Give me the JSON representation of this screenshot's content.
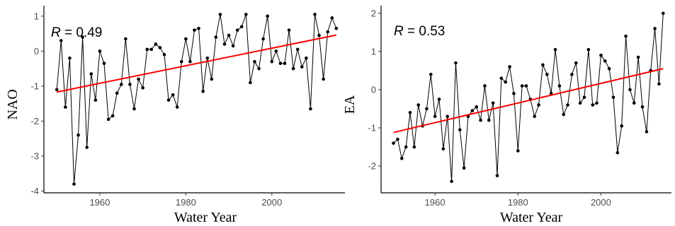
{
  "chart_data": [
    {
      "type": "line",
      "xlabel": "Water Year",
      "ylabel": "NAO",
      "annotation": {
        "symbol": "R",
        "text": " = 0.49"
      },
      "xlim": [
        1947,
        2017
      ],
      "ylim": [
        -4.05,
        1.3
      ],
      "xticks": [
        1960,
        1980,
        2000
      ],
      "yticks": [
        -4,
        -3,
        -2,
        -1,
        0,
        1
      ],
      "grid": false,
      "line_color": "#000000",
      "trend_color": "#ff0000",
      "trend": {
        "x": [
          1950,
          2015
        ],
        "y": [
          -1.17,
          0.46
        ]
      },
      "series": [
        {
          "x": [
            1950,
            1951,
            1952,
            1953,
            1954,
            1955,
            1956,
            1957,
            1958,
            1959,
            1960,
            1961,
            1962,
            1963,
            1964,
            1965,
            1966,
            1967,
            1968,
            1969,
            1970,
            1971,
            1972,
            1973,
            1974,
            1975,
            1976,
            1977,
            1978,
            1979,
            1980,
            1981,
            1982,
            1983,
            1984,
            1985,
            1986,
            1987,
            1988,
            1989,
            1990,
            1991,
            1992,
            1993,
            1994,
            1995,
            1996,
            1997,
            1998,
            1999,
            2000,
            2001,
            2002,
            2003,
            2004,
            2005,
            2006,
            2007,
            2008,
            2009,
            2010,
            2011,
            2012,
            2013,
            2014,
            2015
          ],
          "y": [
            -1.1,
            0.3,
            -1.6,
            -0.2,
            -3.8,
            -2.4,
            0.4,
            -2.75,
            -0.65,
            -1.4,
            0.0,
            -0.35,
            -1.95,
            -1.85,
            -1.2,
            -0.95,
            0.35,
            -0.95,
            -1.65,
            -0.8,
            -1.05,
            0.05,
            0.05,
            0.2,
            0.1,
            -0.1,
            -1.4,
            -1.25,
            -1.6,
            -0.3,
            0.35,
            -0.3,
            0.6,
            0.65,
            -1.15,
            -0.2,
            -0.8,
            0.4,
            1.05,
            0.2,
            0.45,
            0.15,
            0.6,
            0.7,
            1.05,
            -0.9,
            -0.3,
            -0.5,
            0.35,
            1.0,
            -0.3,
            0.0,
            -0.35,
            -0.35,
            0.6,
            -0.5,
            0.05,
            -0.45,
            -0.2,
            -1.65,
            1.05,
            0.45,
            -0.8,
            0.55,
            0.95,
            0.65
          ]
        }
      ]
    },
    {
      "type": "line",
      "xlabel": "Water Year",
      "ylabel": "EA",
      "annotation": {
        "symbol": "R",
        "text": " = 0.53"
      },
      "xlim": [
        1947,
        2017
      ],
      "ylim": [
        -2.7,
        2.2
      ],
      "xticks": [
        1960,
        1980,
        2000
      ],
      "yticks": [
        -2,
        -1,
        0,
        1,
        2
      ],
      "grid": false,
      "line_color": "#000000",
      "trend_color": "#ff0000",
      "trend": {
        "x": [
          1950,
          2015
        ],
        "y": [
          -1.12,
          0.55
        ]
      },
      "series": [
        {
          "x": [
            1950,
            1951,
            1952,
            1953,
            1954,
            1955,
            1956,
            1957,
            1958,
            1959,
            1960,
            1961,
            1962,
            1963,
            1964,
            1965,
            1966,
            1967,
            1968,
            1969,
            1970,
            1971,
            1972,
            1973,
            1974,
            1975,
            1976,
            1977,
            1978,
            1979,
            1980,
            1981,
            1982,
            1983,
            1984,
            1985,
            1986,
            1987,
            1988,
            1989,
            1990,
            1991,
            1992,
            1993,
            1994,
            1995,
            1996,
            1997,
            1998,
            1999,
            2000,
            2001,
            2002,
            2003,
            2004,
            2005,
            2006,
            2007,
            2008,
            2009,
            2010,
            2011,
            2012,
            2013,
            2014,
            2015
          ],
          "y": [
            -1.4,
            -1.3,
            -1.8,
            -1.5,
            -0.6,
            -1.5,
            -0.4,
            -0.95,
            -0.5,
            0.4,
            -0.7,
            -0.25,
            -1.55,
            -0.7,
            -2.4,
            0.7,
            -1.05,
            -2.05,
            -0.7,
            -0.55,
            -0.45,
            -0.8,
            0.1,
            -0.8,
            -0.35,
            -2.25,
            0.3,
            0.2,
            0.6,
            -0.1,
            -1.6,
            0.1,
            0.1,
            -0.25,
            -0.7,
            -0.4,
            0.65,
            0.4,
            -0.1,
            1.05,
            0.1,
            -0.65,
            -0.4,
            0.4,
            0.7,
            -0.35,
            -0.2,
            1.05,
            -0.4,
            -0.35,
            0.9,
            0.75,
            0.55,
            -0.2,
            -1.65,
            -0.95,
            1.4,
            0.0,
            -0.35,
            0.85,
            -0.45,
            -1.1,
            0.5,
            1.6,
            0.15,
            2.0
          ]
        }
      ]
    }
  ]
}
